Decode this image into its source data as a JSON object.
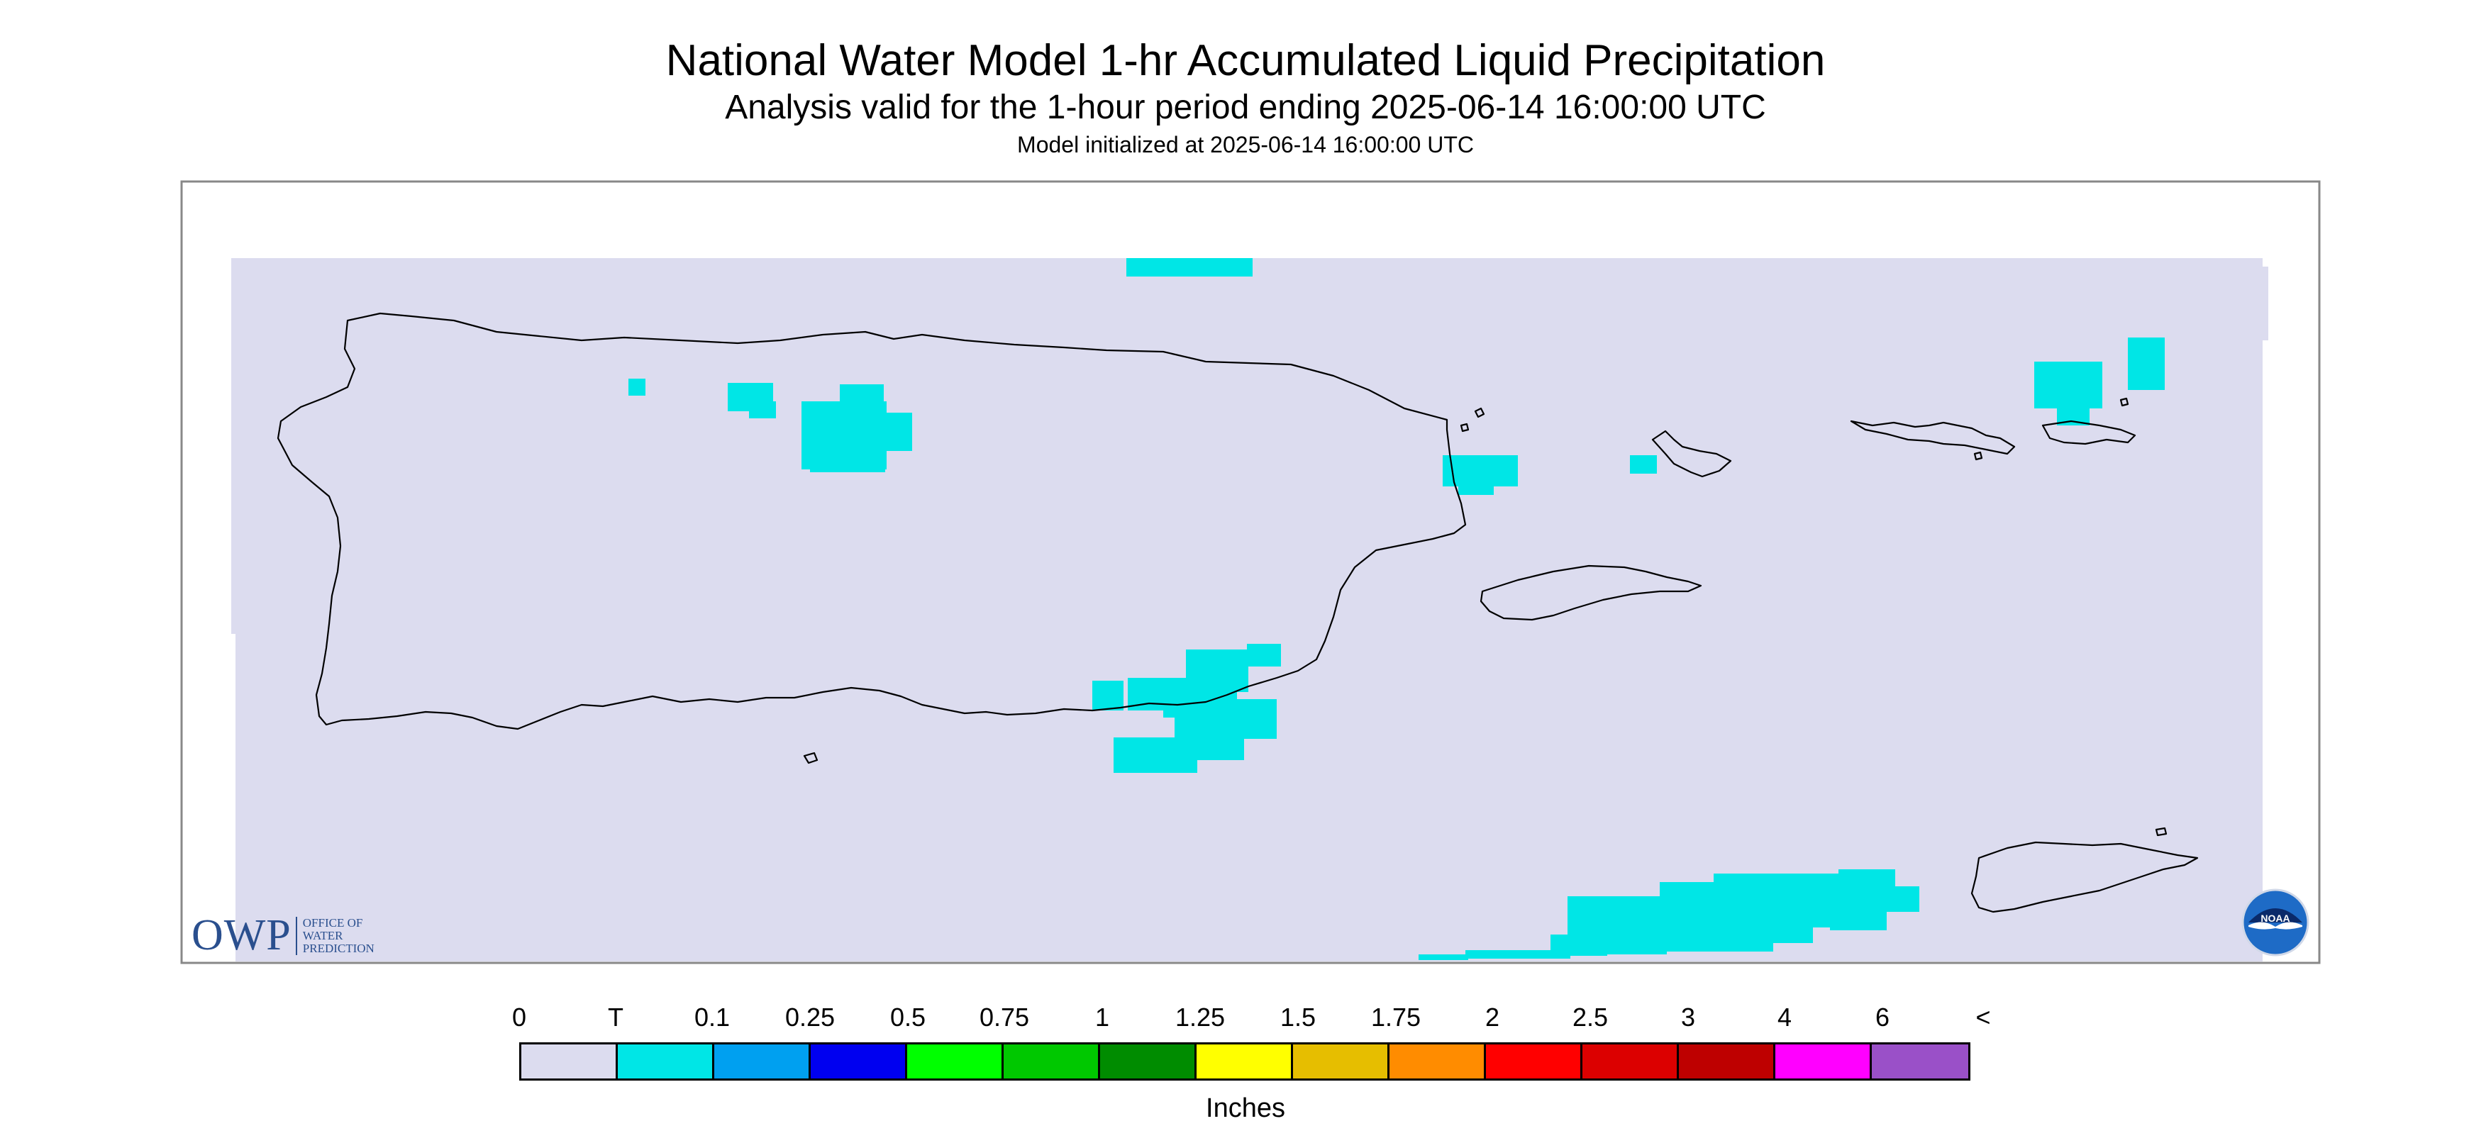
{
  "title": "National Water Model 1-hr Accumulated Liquid Precipitation",
  "subtitle": "Analysis valid for the 1-hour period ending 2025-06-14 16:00:00 UTC",
  "model_init": "Model initialized at 2025-06-14 16:00:00 UTC",
  "legend": {
    "units": "Inches",
    "labels": [
      "0",
      "T",
      "0.1",
      "0.25",
      "0.5",
      "0.75",
      "1",
      "1.25",
      "1.5",
      "1.75",
      "2",
      "2.5",
      "3",
      "4",
      "6",
      "<"
    ],
    "colors": [
      "#dcdcef",
      "#00e6e6",
      "#00a0f0",
      "#0000f0",
      "#00ff00",
      "#00c800",
      "#008c00",
      "#ffff00",
      "#e6be00",
      "#ff8c00",
      "#ff0000",
      "#dc0000",
      "#be0000",
      "#ff00ff",
      "#9a50c8"
    ]
  },
  "colors": {
    "background_field": "#dcdcef",
    "trace_precip": "#00e6e6",
    "coastline": "#000000",
    "owp_blue": "#2a4f8e"
  },
  "owp_logo": {
    "mark": "OWP",
    "lines": [
      "OFFICE OF",
      "WATER",
      "PREDICTION"
    ]
  },
  "noaa_logo": {
    "text": "NOAA"
  },
  "precip_region": "Puerto Rico and U.S. Virgin Islands"
}
